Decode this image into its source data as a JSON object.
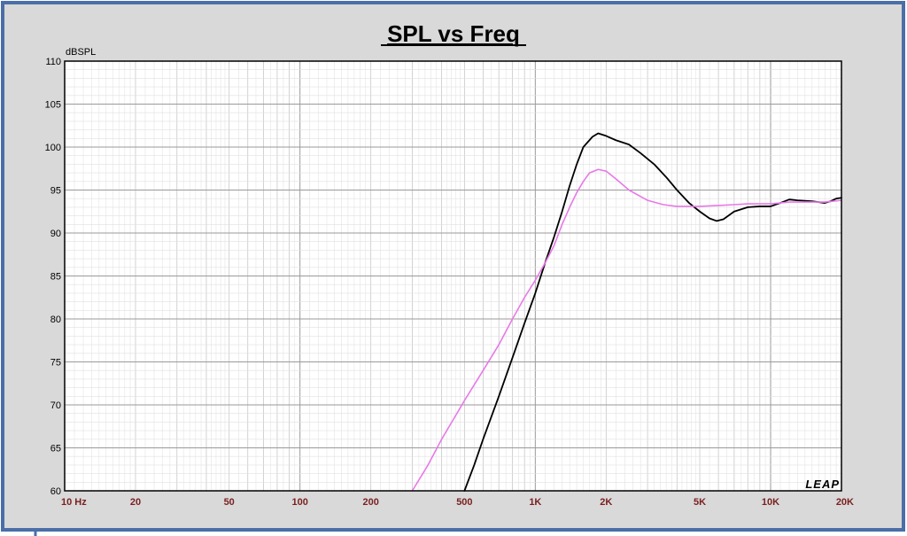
{
  "chart_data": {
    "type": "line",
    "title": "SPL vs Freq",
    "ylabel": "dBSPL",
    "xlabel": "",
    "x_scale": "log",
    "xlim": [
      10,
      20000
    ],
    "ylim": [
      60,
      110
    ],
    "grid": true,
    "y_ticks": [
      60,
      65,
      70,
      75,
      80,
      85,
      90,
      95,
      100,
      105,
      110
    ],
    "x_ticks": [
      {
        "value": 10,
        "label": "10  Hz"
      },
      {
        "value": 20,
        "label": "20"
      },
      {
        "value": 50,
        "label": "50"
      },
      {
        "value": 100,
        "label": "100"
      },
      {
        "value": 200,
        "label": "200"
      },
      {
        "value": 500,
        "label": "500"
      },
      {
        "value": 1000,
        "label": "1K"
      },
      {
        "value": 2000,
        "label": "2K"
      },
      {
        "value": 5000,
        "label": "5K"
      },
      {
        "value": 10000,
        "label": "10K"
      },
      {
        "value": 20000,
        "label": "20K"
      }
    ],
    "series": [
      {
        "color": "#000000",
        "points": [
          [
            500,
            60
          ],
          [
            550,
            63
          ],
          [
            600,
            66
          ],
          [
            700,
            71
          ],
          [
            800,
            75.5
          ],
          [
            900,
            79.5
          ],
          [
            1000,
            83
          ],
          [
            1100,
            86.5
          ],
          [
            1200,
            89.5
          ],
          [
            1300,
            92.5
          ],
          [
            1400,
            95.5
          ],
          [
            1500,
            98
          ],
          [
            1600,
            100
          ],
          [
            1750,
            101.2
          ],
          [
            1850,
            101.6
          ],
          [
            2000,
            101.3
          ],
          [
            2200,
            100.8
          ],
          [
            2500,
            100.3
          ],
          [
            2800,
            99.3
          ],
          [
            3200,
            98
          ],
          [
            3600,
            96.5
          ],
          [
            4000,
            95
          ],
          [
            4500,
            93.5
          ],
          [
            5000,
            92.5
          ],
          [
            5500,
            91.7
          ],
          [
            5900,
            91.4
          ],
          [
            6300,
            91.6
          ],
          [
            7000,
            92.5
          ],
          [
            8000,
            93
          ],
          [
            9000,
            93.1
          ],
          [
            10000,
            93.1
          ],
          [
            11000,
            93.5
          ],
          [
            12000,
            93.9
          ],
          [
            13000,
            93.8
          ],
          [
            15000,
            93.7
          ],
          [
            17000,
            93.5
          ],
          [
            18000,
            93.7
          ],
          [
            19000,
            94
          ],
          [
            20000,
            94.1
          ]
        ]
      },
      {
        "color": "#e879e8",
        "points": [
          [
            300,
            60
          ],
          [
            350,
            63
          ],
          [
            400,
            66
          ],
          [
            500,
            70.5
          ],
          [
            600,
            74
          ],
          [
            700,
            77
          ],
          [
            800,
            80
          ],
          [
            900,
            82.5
          ],
          [
            1000,
            84.5
          ],
          [
            1100,
            86.5
          ],
          [
            1200,
            88.5
          ],
          [
            1300,
            91
          ],
          [
            1400,
            93
          ],
          [
            1500,
            94.7
          ],
          [
            1600,
            96
          ],
          [
            1700,
            97
          ],
          [
            1850,
            97.4
          ],
          [
            2000,
            97.2
          ],
          [
            2200,
            96.3
          ],
          [
            2500,
            95
          ],
          [
            3000,
            93.8
          ],
          [
            3500,
            93.3
          ],
          [
            4000,
            93.1
          ],
          [
            5000,
            93.1
          ],
          [
            6000,
            93.2
          ],
          [
            7000,
            93.3
          ],
          [
            8000,
            93.4
          ],
          [
            9000,
            93.4
          ],
          [
            10000,
            93.4
          ],
          [
            12000,
            93.6
          ],
          [
            15000,
            93.6
          ],
          [
            17000,
            93.6
          ],
          [
            20000,
            93.8
          ]
        ]
      }
    ],
    "annotations": [
      "LEAP"
    ]
  },
  "colors": {
    "frame_border": "#4a6ea8",
    "panel_bg": "#d9d9d9",
    "plot_bg": "#ffffff",
    "grid": "#c8c8c8",
    "axis_label": "#7a1f1f"
  }
}
